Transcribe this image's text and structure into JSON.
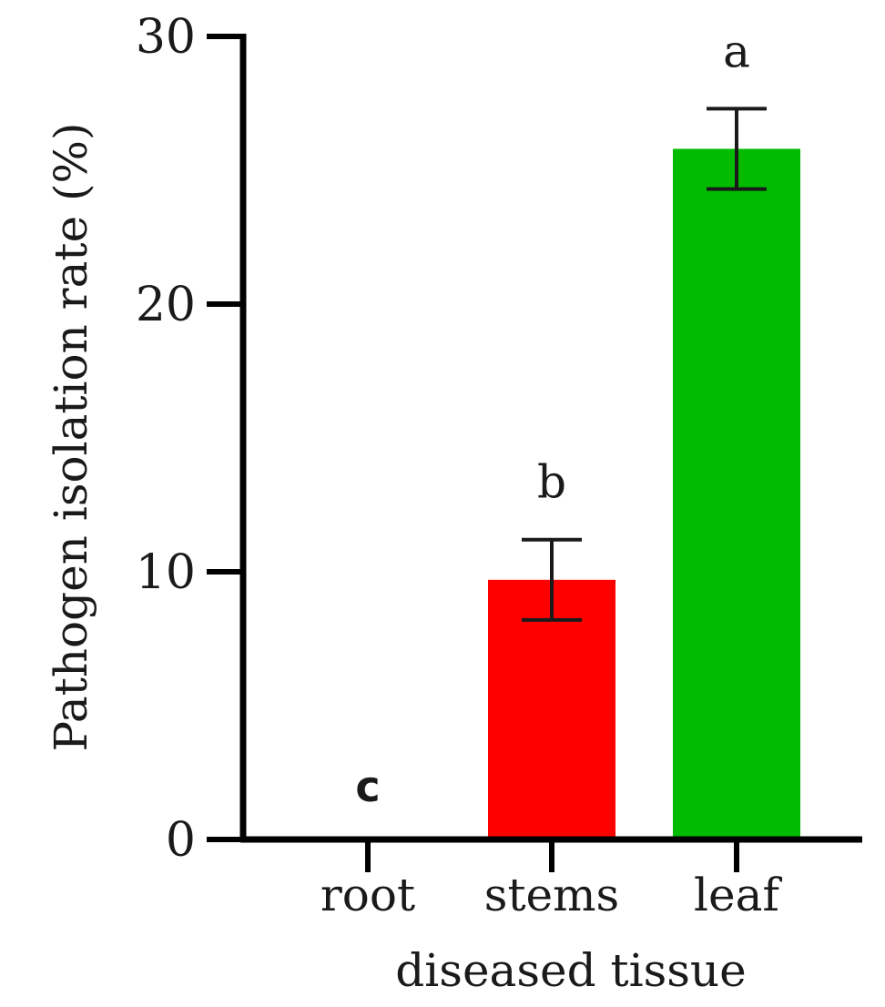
{
  "chart_data": {
    "type": "bar",
    "categories": [
      "root",
      "stems",
      "leaf"
    ],
    "values": [
      0,
      9.7,
      25.8
    ],
    "errors": [
      0,
      1.5,
      1.5
    ],
    "significance_letters": [
      "c",
      "b",
      "a"
    ],
    "colors": [
      "#ff0000",
      "#ff0000",
      "#00bb00"
    ],
    "xlabel": "diseased tissue",
    "ylabel": "Pathogen isolation rate (%)",
    "ylim": [
      0,
      30
    ],
    "yticks": [
      "0",
      "10",
      "20",
      "30"
    ],
    "grid": false
  }
}
